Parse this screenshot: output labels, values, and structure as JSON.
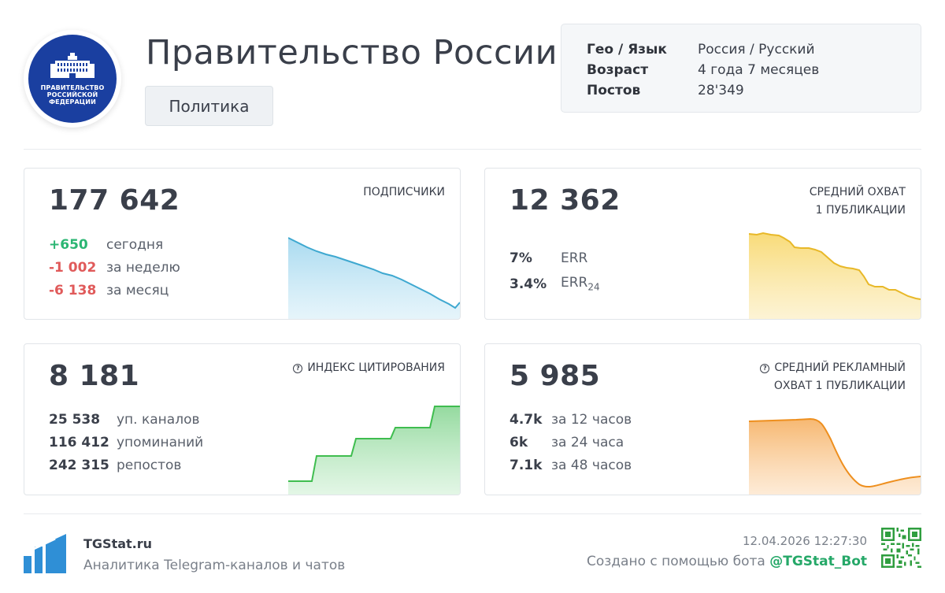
{
  "header": {
    "logo_text": [
      "ПРАВИТЕЛЬСТВО",
      "РОССИЙСКОЙ",
      "ФЕДЕРАЦИИ"
    ],
    "title": "Правительство России",
    "category": "Политика",
    "info": [
      {
        "key": "Гео / Язык",
        "value": "Россия / Русский"
      },
      {
        "key": "Возраст",
        "value": "4 года 7 месяцев"
      },
      {
        "key": "Постов",
        "value": "28'349"
      }
    ]
  },
  "cards": {
    "subscribers": {
      "value": "177 642",
      "label": "ПОДПИСЧИКИ",
      "rows": [
        {
          "num": "+650",
          "desc": "сегодня",
          "color": "#2bb673"
        },
        {
          "num": "-1 002",
          "desc": "за неделю",
          "color": "#e05a5a"
        },
        {
          "num": "-6 138",
          "desc": "за месяц",
          "color": "#e05a5a"
        }
      ],
      "chart_color": "#3ea8d0"
    },
    "avg_reach": {
      "value": "12 362",
      "label_1": "СРЕДНИЙ ОХВАТ",
      "label_2": "1 ПУБЛИКАЦИИ",
      "rows": [
        {
          "num": "7%",
          "desc": "ERR"
        },
        {
          "num": "3.4%",
          "desc": "ERR",
          "sub": "24"
        }
      ],
      "chart_color": "#e8b828"
    },
    "citation": {
      "value": "8 181",
      "label": "ИНДЕКС ЦИТИРОВАНИЯ",
      "rows": [
        {
          "num": "25 538",
          "desc": "уп. каналов"
        },
        {
          "num": "116 412",
          "desc": "упоминаний"
        },
        {
          "num": "242 315",
          "desc": "репостов"
        }
      ],
      "chart_color": "#3fbd4f"
    },
    "ad_reach": {
      "value": "5 985",
      "label_1": "СРЕДНИЙ РЕКЛАМНЫЙ",
      "label_2": "ОХВАТ 1 ПУБЛИКАЦИИ",
      "rows": [
        {
          "num": "4.7k",
          "desc": "за 12 часов"
        },
        {
          "num": "6k",
          "desc": "за 24 часа"
        },
        {
          "num": "7.1k",
          "desc": "за 48 часов"
        }
      ],
      "chart_color": "#ee8f1e"
    }
  },
  "footer": {
    "site": "TGStat.ru",
    "tagline": "Аналитика Telegram-каналов и чатов",
    "timestamp": "12.04.2026 12:27:30",
    "made_with": "Создано с помощью бота",
    "bot": "@TGStat_Bot"
  }
}
